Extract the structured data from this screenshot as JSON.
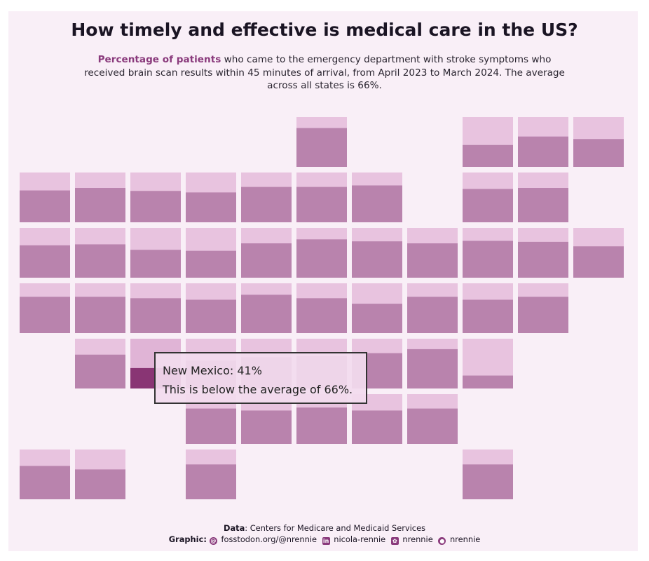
{
  "title": "How timely and effective is medical care in the US?",
  "subtitle": {
    "highlight": "Percentage of patients",
    "text": " who came to the emergency department with stroke symptoms who received brain scan results within 45 minutes of arrival, from April 2023 to March 2024. The average across all states is 66%."
  },
  "colors": {
    "panel": "#f9eff7",
    "tile_bg": "#e8c3df",
    "tile_fill": "#b983ad",
    "highlight_fill": "#893574",
    "accent_text": "#8a3a7c"
  },
  "chart_data": {
    "type": "tile-grid-map",
    "value_range": [
      0,
      100
    ],
    "average": 66,
    "tiles": [
      {
        "row": 0,
        "col": 5,
        "value": 78
      },
      {
        "row": 0,
        "col": 8,
        "value": 44
      },
      {
        "row": 0,
        "col": 9,
        "value": 61
      },
      {
        "row": 0,
        "col": 10,
        "value": 56
      },
      {
        "row": 1,
        "col": 0,
        "value": 64
      },
      {
        "row": 1,
        "col": 1,
        "value": 69
      },
      {
        "row": 1,
        "col": 2,
        "value": 63
      },
      {
        "row": 1,
        "col": 3,
        "value": 60
      },
      {
        "row": 1,
        "col": 4,
        "value": 71
      },
      {
        "row": 1,
        "col": 5,
        "value": 71
      },
      {
        "row": 1,
        "col": 6,
        "value": 74
      },
      {
        "row": 1,
        "col": 8,
        "value": 67
      },
      {
        "row": 1,
        "col": 9,
        "value": 69
      },
      {
        "row": 2,
        "col": 0,
        "value": 65
      },
      {
        "row": 2,
        "col": 1,
        "value": 67
      },
      {
        "row": 2,
        "col": 2,
        "value": 56
      },
      {
        "row": 2,
        "col": 3,
        "value": 54
      },
      {
        "row": 2,
        "col": 4,
        "value": 69
      },
      {
        "row": 2,
        "col": 5,
        "value": 77
      },
      {
        "row": 2,
        "col": 6,
        "value": 73
      },
      {
        "row": 2,
        "col": 7,
        "value": 69
      },
      {
        "row": 2,
        "col": 8,
        "value": 74
      },
      {
        "row": 2,
        "col": 9,
        "value": 72
      },
      {
        "row": 2,
        "col": 10,
        "value": 63
      },
      {
        "row": 3,
        "col": 0,
        "value": 73
      },
      {
        "row": 3,
        "col": 1,
        "value": 73
      },
      {
        "row": 3,
        "col": 2,
        "value": 70
      },
      {
        "row": 3,
        "col": 3,
        "value": 67
      },
      {
        "row": 3,
        "col": 4,
        "value": 77
      },
      {
        "row": 3,
        "col": 5,
        "value": 70
      },
      {
        "row": 3,
        "col": 6,
        "value": 59
      },
      {
        "row": 3,
        "col": 7,
        "value": 73
      },
      {
        "row": 3,
        "col": 8,
        "value": 67
      },
      {
        "row": 3,
        "col": 9,
        "value": 73
      },
      {
        "row": 4,
        "col": 1,
        "value": 68
      },
      {
        "row": 4,
        "col": 2,
        "value": 41,
        "active": true
      },
      {
        "row": 4,
        "col": 3,
        "value": 56
      },
      {
        "row": 4,
        "col": 4,
        "value": 63
      },
      {
        "row": 4,
        "col": 5,
        "value": 65
      },
      {
        "row": 4,
        "col": 6,
        "value": 71
      },
      {
        "row": 4,
        "col": 7,
        "value": 79
      },
      {
        "row": 4,
        "col": 8,
        "value": 26
      },
      {
        "row": 5,
        "col": 3,
        "value": 71
      },
      {
        "row": 5,
        "col": 4,
        "value": 67
      },
      {
        "row": 5,
        "col": 5,
        "value": 73
      },
      {
        "row": 5,
        "col": 6,
        "value": 67
      },
      {
        "row": 5,
        "col": 7,
        "value": 71
      },
      {
        "row": 6,
        "col": 0,
        "value": 67
      },
      {
        "row": 6,
        "col": 1,
        "value": 60
      },
      {
        "row": 6,
        "col": 3,
        "value": 70
      },
      {
        "row": 6,
        "col": 8,
        "value": 70
      }
    ]
  },
  "tooltip": {
    "line1": "New Mexico: 41%",
    "line2": "This is below the average of 66%."
  },
  "caption": {
    "data_label": "Data",
    "data_text": ": Centers for Medicare and Medicaid Services",
    "graphic_label": "Graphic:",
    "mastodon": " fosstodon.org/@nrennie",
    "linkedin": " nicola-rennie",
    "bluesky": " nrennie",
    "github": " nrennie",
    "icons": [
      "mastodon-icon",
      "linkedin-icon",
      "bluesky-icon",
      "github-icon"
    ]
  }
}
